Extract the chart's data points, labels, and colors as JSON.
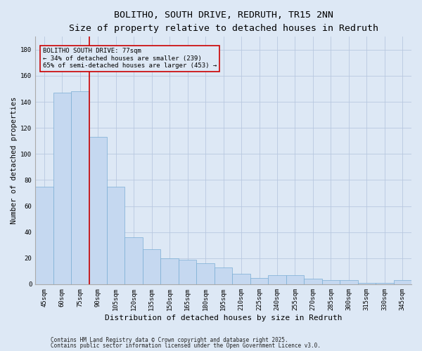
{
  "title": "BOLITHO, SOUTH DRIVE, REDRUTH, TR15 2NN",
  "subtitle": "Size of property relative to detached houses in Redruth",
  "xlabel": "Distribution of detached houses by size in Redruth",
  "ylabel": "Number of detached properties",
  "footnote1": "Contains HM Land Registry data © Crown copyright and database right 2025.",
  "footnote2": "Contains public sector information licensed under the Open Government Licence v3.0.",
  "categories": [
    "45sqm",
    "60sqm",
    "75sqm",
    "90sqm",
    "105sqm",
    "120sqm",
    "135sqm",
    "150sqm",
    "165sqm",
    "180sqm",
    "195sqm",
    "210sqm",
    "225sqm",
    "240sqm",
    "255sqm",
    "270sqm",
    "285sqm",
    "300sqm",
    "315sqm",
    "330sqm",
    "345sqm"
  ],
  "values": [
    75,
    147,
    148,
    113,
    75,
    36,
    27,
    20,
    19,
    16,
    13,
    8,
    5,
    7,
    7,
    4,
    3,
    3,
    1,
    1,
    3
  ],
  "bar_color": "#c5d8f0",
  "bar_edge_color": "#7aaed4",
  "background_color": "#dde8f5",
  "vline_color": "#cc0000",
  "annotation_text": "BOLITHO SOUTH DRIVE: 77sqm\n← 34% of detached houses are smaller (239)\n65% of semi-detached houses are larger (453) →",
  "annotation_box_facecolor": "#dde8f5",
  "annotation_box_edgecolor": "#cc0000",
  "ylim": [
    0,
    190
  ],
  "yticks": [
    0,
    20,
    40,
    60,
    80,
    100,
    120,
    140,
    160,
    180
  ],
  "grid_color": "#b8c8e0",
  "title_fontsize": 9.5,
  "subtitle_fontsize": 8.5,
  "xlabel_fontsize": 8,
  "ylabel_fontsize": 7.5,
  "tick_fontsize": 6.5,
  "annotation_fontsize": 6.5,
  "footnote_fontsize": 5.5,
  "vline_x_index": 2.5
}
